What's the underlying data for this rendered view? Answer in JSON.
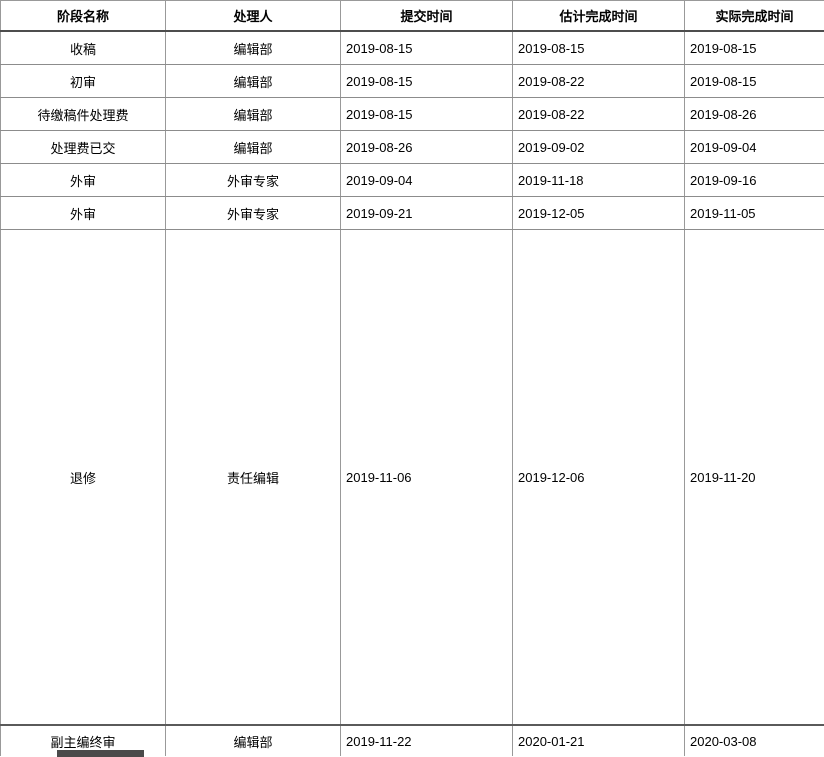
{
  "table": {
    "columns": [
      {
        "label": "阶段名称"
      },
      {
        "label": "处理人"
      },
      {
        "label": "提交时间"
      },
      {
        "label": "估计完成时间"
      },
      {
        "label": "实际完成时间"
      }
    ],
    "rows": [
      {
        "stage": "收稿",
        "handler": "编辑部",
        "submitted": "2019-08-15",
        "estimated": "2019-08-15",
        "actual": "2019-08-15"
      },
      {
        "stage": "初审",
        "handler": "编辑部",
        "submitted": "2019-08-15",
        "estimated": "2019-08-22",
        "actual": "2019-08-15"
      },
      {
        "stage": "待缴稿件处理费",
        "handler": "编辑部",
        "submitted": "2019-08-15",
        "estimated": "2019-08-22",
        "actual": "2019-08-26"
      },
      {
        "stage": "处理费已交",
        "handler": "编辑部",
        "submitted": "2019-08-26",
        "estimated": "2019-09-02",
        "actual": "2019-09-04"
      },
      {
        "stage": "外审",
        "handler": "外审专家",
        "submitted": "2019-09-04",
        "estimated": "2019-11-18",
        "actual": "2019-09-16"
      },
      {
        "stage": "外审",
        "handler": "外审专家",
        "submitted": "2019-09-21",
        "estimated": "2019-12-05",
        "actual": "2019-11-05"
      },
      {
        "stage": "退修",
        "handler": "责任编辑",
        "submitted": "2019-11-06",
        "estimated": "2019-12-06",
        "actual": "2019-11-20"
      },
      {
        "stage": "副主编终审",
        "handler": "编辑部",
        "submitted": "2019-11-22",
        "estimated": "2020-01-21",
        "actual": "2020-03-08"
      }
    ]
  },
  "colors": {
    "background": "#ffffff",
    "text": "#000000",
    "row_border": "#8c8c8c",
    "column_border": "#999999",
    "header_border": "#4d4d4d",
    "fragment_bar": "#4a4a4a"
  }
}
